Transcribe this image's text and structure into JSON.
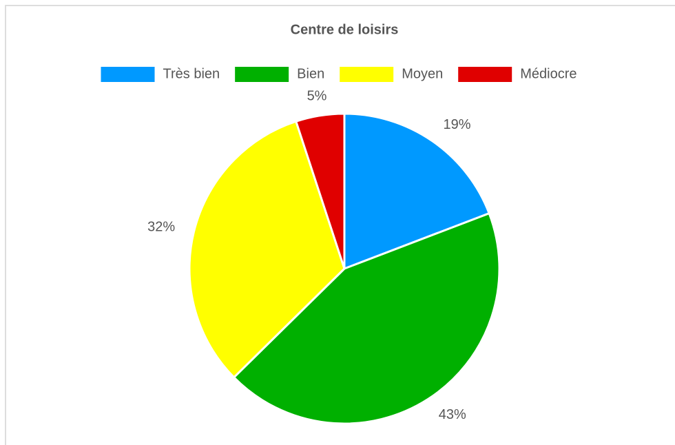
{
  "chart_data": {
    "type": "pie",
    "title": "Centre de loisirs",
    "categories": [
      "Très bien",
      "Bien",
      "Moyen",
      "Médiocre"
    ],
    "values": [
      19,
      43,
      32,
      5
    ],
    "value_labels": [
      "19%",
      "43%",
      "32%",
      "5%"
    ],
    "colors": [
      "#0099ff",
      "#00b000",
      "#ffff00",
      "#e00000"
    ],
    "legend": "top"
  }
}
